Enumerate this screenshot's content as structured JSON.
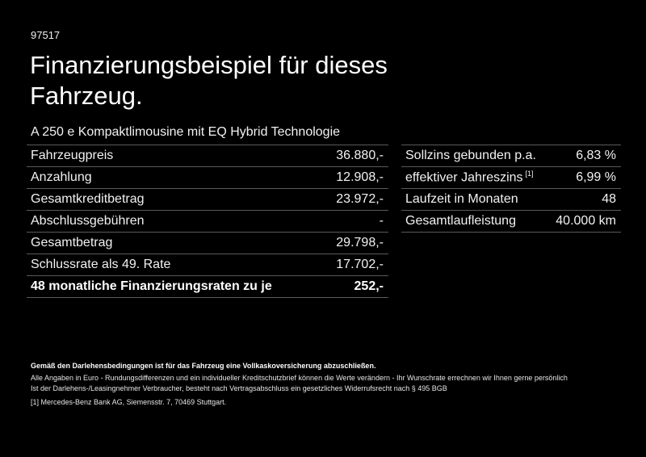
{
  "header": {
    "code": "97517",
    "title": "Finanzierungsbeispiel für dieses Fahrzeug.",
    "subtitle": "A 250 e Kompaktlimousine mit EQ Hybrid Technologie"
  },
  "left_table": {
    "rows": [
      {
        "label": "Fahrzeugpreis",
        "value": "36.880,-"
      },
      {
        "label": "Anzahlung",
        "value": "12.908,-"
      },
      {
        "label": "Gesamtkreditbetrag",
        "value": "23.972,-"
      },
      {
        "label": "Abschlussgebühren",
        "value": "-"
      },
      {
        "label": "Gesamtbetrag",
        "value": "29.798,-"
      },
      {
        "label": "Schlussrate als 49. Rate",
        "value": "17.702,-"
      },
      {
        "label": "48 monatliche Finanzierungsraten zu je",
        "value": "252,-"
      }
    ]
  },
  "right_table": {
    "rows": [
      {
        "label": "Sollzins gebunden p.a.",
        "value": "6,83 %"
      },
      {
        "label": "effektiver Jahreszins",
        "sup": "[1]",
        "value": "6,99 %"
      },
      {
        "label": "Laufzeit in Monaten",
        "value": "48"
      },
      {
        "label": "Gesamtlaufleistung",
        "value": "40.000 km"
      }
    ]
  },
  "notes": {
    "bold_line": "Gemäß den Darlehensbedingungen ist für das Fahrzeug eine Vollkaskoversicherung abzuschließen.",
    "line1": "Alle Angaben in Euro - Rundungsdifferenzen und ein individueller Kreditschutzbrief können die Werte verändern - Ihr Wunschrate errechnen wir Ihnen gerne persönlich",
    "line2": "Ist der Darlehens-/Leasingnehmer Verbraucher, besteht nach Vertragsabschluss ein gesetzliches Widerrufsrecht nach § 495 BGB",
    "footnote_marker": "[1]",
    "footnote_text": "Mercedes-Benz Bank AG, Siemensstr. 7, 70469 Stuttgart."
  }
}
